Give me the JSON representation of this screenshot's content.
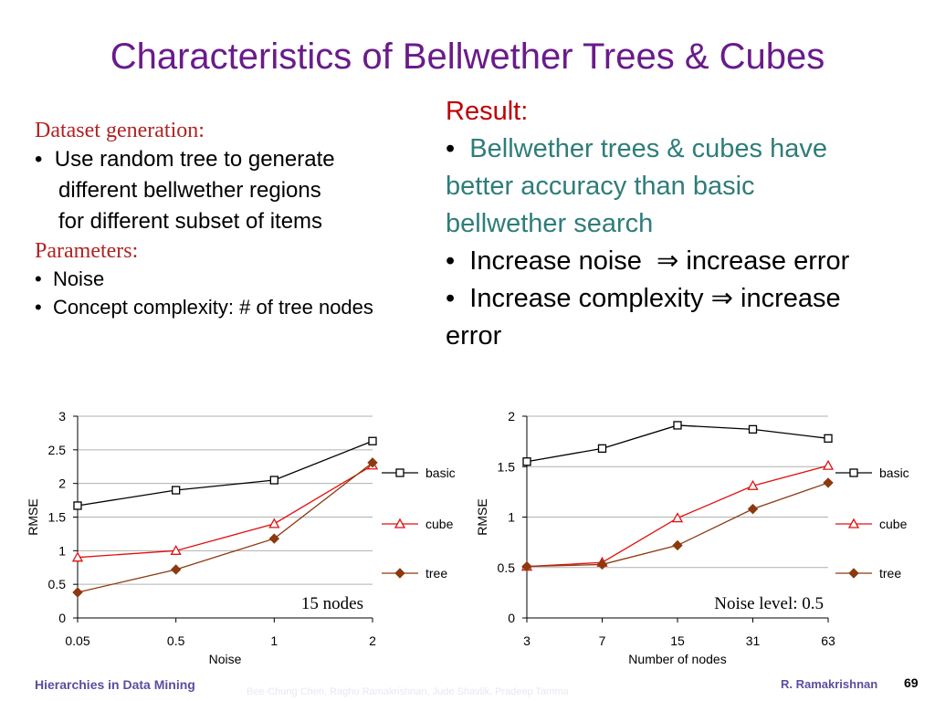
{
  "slide": {
    "title": "Characteristics of Bellwether Trees & Cubes",
    "left": {
      "dataset_heading": "Dataset generation:",
      "dataset_bullet_lines": [
        "Use random tree to generate",
        "different bellwether regions",
        "for different subset of items"
      ],
      "params_heading": "Parameters:",
      "params_bullets": [
        "Noise",
        "Concept complexity: # of tree nodes"
      ]
    },
    "right": {
      "result_heading": "Result:",
      "b1_lines": [
        "Bellwether trees & cubes have",
        "better accuracy than basic",
        "bellwether search"
      ],
      "b2_a": "Increase noise",
      "b2_b": "increase error",
      "b3_a": "Increase complexity",
      "b3_b": "increase",
      "b3_c": "error",
      "bullet_char": "•",
      "arrow": "⇒"
    },
    "footer": {
      "left": "Hierarchies in Data Mining",
      "middle": "Bee-Chung Chen, Raghu Ramakrishnan, Jude Shavlik, Pradeep Tamma",
      "right": "R. Ramakrishnan",
      "page": "69"
    }
  },
  "chart_data": [
    {
      "type": "line",
      "xlabel": "Noise",
      "ylabel": "RMSE",
      "categories": [
        "0.05",
        "0.5",
        "1",
        "2"
      ],
      "ylim": [
        0,
        3
      ],
      "yticks": [
        "0",
        "0.5",
        "1",
        "1.5",
        "2",
        "2.5",
        "3"
      ],
      "grid": true,
      "legend": "right",
      "annotation": "15 nodes",
      "series": [
        {
          "name": "basic",
          "color": "#000000",
          "marker": "square",
          "values": [
            1.67,
            1.9,
            2.05,
            2.63
          ]
        },
        {
          "name": "cube",
          "color": "#e01010",
          "marker": "triangle",
          "values": [
            0.9,
            1.0,
            1.4,
            2.27
          ]
        },
        {
          "name": "tree",
          "color": "#8b3a0f",
          "marker": "diamond",
          "values": [
            0.38,
            0.72,
            1.18,
            2.31
          ]
        }
      ]
    },
    {
      "type": "line",
      "xlabel": "Number of nodes",
      "ylabel": "RMSE",
      "categories": [
        "3",
        "7",
        "15",
        "31",
        "63"
      ],
      "ylim": [
        0,
        2
      ],
      "yticks": [
        "0",
        "0.5",
        "1",
        "1.5",
        "2"
      ],
      "grid": true,
      "legend": "right",
      "annotation": "Noise level: 0.5",
      "series": [
        {
          "name": "basic",
          "color": "#000000",
          "marker": "square",
          "values": [
            1.55,
            1.68,
            1.91,
            1.87,
            1.78
          ]
        },
        {
          "name": "cube",
          "color": "#e01010",
          "marker": "triangle",
          "values": [
            0.51,
            0.55,
            0.99,
            1.31,
            1.51
          ]
        },
        {
          "name": "tree",
          "color": "#8b3a0f",
          "marker": "diamond",
          "values": [
            0.51,
            0.53,
            0.72,
            1.08,
            1.34
          ]
        }
      ]
    }
  ]
}
